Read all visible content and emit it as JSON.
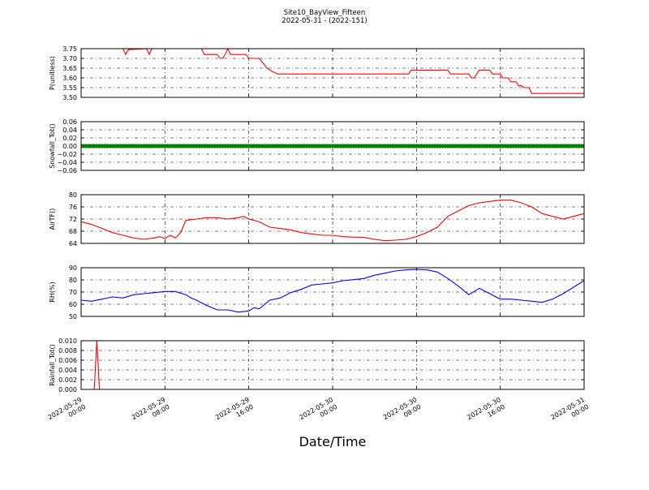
{
  "figure": {
    "title_line1": "Site10_BayView_Fifteen",
    "title_line2": "2022-05-31 - (2022-151)",
    "xlabel": "Date/Time"
  },
  "colors": {
    "red": "#ff0000",
    "green": "#008000",
    "blue": "#0000ff",
    "grid": "#000000"
  },
  "chart_data": [
    {
      "type": "line",
      "ylabel": "P(unitless)",
      "ylim": [
        3.5,
        3.75
      ],
      "yticks": [
        "3.50",
        "3.55",
        "3.60",
        "3.65",
        "3.70",
        "3.75"
      ],
      "x_range": [
        "2022-05-29 00:00",
        "2022-05-31 00:00"
      ],
      "xticks": [
        "2022-05-29 00:00",
        "2022-05-29 08:00",
        "2022-05-29 16:00",
        "2022-05-30 00:00",
        "2022-05-30 08:00",
        "2022-05-30 16:00",
        "2022-05-31 00:00"
      ],
      "grid": true,
      "series": [
        {
          "color": "red",
          "x": [
            "2022-05-29 00:00",
            "2022-05-29 04:00",
            "2022-05-29 04:15",
            "2022-05-29 04:30",
            "2022-05-29 06:15",
            "2022-05-29 06:30",
            "2022-05-29 06:45",
            "2022-05-29 11:30",
            "2022-05-29 11:45",
            "2022-05-29 13:00",
            "2022-05-29 13:15",
            "2022-05-29 13:30",
            "2022-05-29 13:45",
            "2022-05-29 14:00",
            "2022-05-29 14:15",
            "2022-05-29 15:45",
            "2022-05-29 16:00",
            "2022-05-29 17:00",
            "2022-05-29 17:45",
            "2022-05-29 18:00",
            "2022-05-29 18:45",
            "2022-05-29 20:00",
            "2022-05-30 07:15",
            "2022-05-30 07:30",
            "2022-05-30 11:00",
            "2022-05-30 11:15",
            "2022-05-30 13:00",
            "2022-05-30 13:15",
            "2022-05-30 13:30",
            "2022-05-30 14:00",
            "2022-05-30 15:00",
            "2022-05-30 15:15",
            "2022-05-30 16:00",
            "2022-05-30 16:15",
            "2022-05-30 16:45",
            "2022-05-30 17:00",
            "2022-05-30 17:30",
            "2022-05-30 17:45",
            "2022-05-30 18:00",
            "2022-05-30 18:15",
            "2022-05-30 18:45",
            "2022-05-30 19:00",
            "2022-05-30 19:30",
            "2022-05-30 19:45",
            "2022-05-30 23:00",
            "2022-05-31 00:00"
          ],
          "y": [
            3.75,
            3.75,
            3.72,
            3.745,
            3.75,
            3.72,
            3.75,
            3.75,
            3.72,
            3.72,
            3.7,
            3.7,
            3.72,
            3.75,
            3.72,
            3.72,
            3.7,
            3.7,
            3.65,
            3.64,
            3.62,
            3.62,
            3.62,
            3.64,
            3.64,
            3.62,
            3.62,
            3.6,
            3.6,
            3.64,
            3.64,
            3.62,
            3.62,
            3.6,
            3.6,
            3.58,
            3.58,
            3.56,
            3.56,
            3.55,
            3.55,
            3.52,
            3.52,
            3.52,
            3.52,
            3.52
          ]
        }
      ]
    },
    {
      "type": "scatter",
      "ylabel": "Snowfall_Tot()",
      "ylim": [
        -0.06,
        0.06
      ],
      "yticks": [
        "−0.06",
        "−0.04",
        "−0.02",
        "0.00",
        "0.02",
        "0.04",
        "0.06"
      ],
      "x_range": [
        "2022-05-29 00:00",
        "2022-05-31 00:00"
      ],
      "grid": true,
      "series": [
        {
          "color": "green",
          "constant_value": 0.0,
          "interval_minutes": 15
        }
      ]
    },
    {
      "type": "line",
      "ylabel": "AirTF()",
      "ylim": [
        62,
        80
      ],
      "yticks": [
        "64",
        "68",
        "72",
        "76",
        "80"
      ],
      "x_range": [
        "2022-05-29 00:00",
        "2022-05-31 00:00"
      ],
      "grid": true,
      "series": [
        {
          "color": "red",
          "x": [
            "2022-05-29 00:00",
            "2022-05-29 01:00",
            "2022-05-29 02:00",
            "2022-05-29 03:00",
            "2022-05-29 04:00",
            "2022-05-29 05:00",
            "2022-05-29 06:00",
            "2022-05-29 07:00",
            "2022-05-29 07:30",
            "2022-05-29 08:00",
            "2022-05-29 08:30",
            "2022-05-29 09:00",
            "2022-05-29 09:30",
            "2022-05-29 10:00",
            "2022-05-29 11:00",
            "2022-05-29 12:00",
            "2022-05-29 13:00",
            "2022-05-29 14:00",
            "2022-05-29 15:00",
            "2022-05-29 15:30",
            "2022-05-29 16:00",
            "2022-05-29 17:00",
            "2022-05-29 18:00",
            "2022-05-29 19:00",
            "2022-05-29 20:00",
            "2022-05-29 21:00",
            "2022-05-29 22:00",
            "2022-05-29 23:00",
            "2022-05-30 00:00",
            "2022-05-30 01:00",
            "2022-05-30 02:00",
            "2022-05-30 03:00",
            "2022-05-30 04:00",
            "2022-05-30 05:00",
            "2022-05-30 06:00",
            "2022-05-30 07:00",
            "2022-05-30 08:00",
            "2022-05-30 09:00",
            "2022-05-30 10:00",
            "2022-05-30 11:00",
            "2022-05-30 12:00",
            "2022-05-30 13:00",
            "2022-05-30 14:00",
            "2022-05-30 15:00",
            "2022-05-30 16:00",
            "2022-05-30 17:00",
            "2022-05-30 18:00",
            "2022-05-30 19:00",
            "2022-05-30 20:00",
            "2022-05-30 21:00",
            "2022-05-30 22:00",
            "2022-05-30 23:00",
            "2022-05-31 00:00"
          ],
          "y": [
            70,
            69,
            67.5,
            66,
            65,
            64,
            63.5,
            64,
            64.5,
            63.8,
            65,
            64,
            66,
            70.5,
            71,
            71.5,
            71.5,
            71,
            71.5,
            72,
            71,
            70,
            68,
            67.5,
            67,
            66,
            65.5,
            65,
            65,
            64.5,
            64.3,
            64.2,
            63.5,
            63,
            63.2,
            63.5,
            64.5,
            66,
            68,
            72,
            74,
            76,
            77,
            77.5,
            78,
            78,
            77,
            75.5,
            73,
            72,
            71,
            72,
            73
          ]
        }
      ]
    },
    {
      "type": "line",
      "ylabel": "RH(%)",
      "ylim": [
        45,
        90
      ],
      "yticks": [
        "50",
        "60",
        "70",
        "80",
        "90"
      ],
      "x_range": [
        "2022-05-29 00:00",
        "2022-05-31 00:00"
      ],
      "grid": true,
      "series": [
        {
          "color": "blue",
          "x": [
            "2022-05-29 00:00",
            "2022-05-29 01:00",
            "2022-05-29 02:00",
            "2022-05-29 03:00",
            "2022-05-29 04:00",
            "2022-05-29 05:00",
            "2022-05-29 06:00",
            "2022-05-29 07:00",
            "2022-05-29 08:00",
            "2022-05-29 09:00",
            "2022-05-29 10:00",
            "2022-05-29 10:30",
            "2022-05-29 11:00",
            "2022-05-29 12:00",
            "2022-05-29 13:00",
            "2022-05-29 14:00",
            "2022-05-29 15:00",
            "2022-05-29 16:00",
            "2022-05-29 16:30",
            "2022-05-29 17:00",
            "2022-05-29 18:00",
            "2022-05-29 19:00",
            "2022-05-29 20:00",
            "2022-05-29 21:00",
            "2022-05-29 22:00",
            "2022-05-29 23:00",
            "2022-05-30 00:00",
            "2022-05-30 01:00",
            "2022-05-30 02:00",
            "2022-05-30 03:00",
            "2022-05-30 04:00",
            "2022-05-30 05:00",
            "2022-05-30 06:00",
            "2022-05-30 07:00",
            "2022-05-30 08:00",
            "2022-05-30 09:00",
            "2022-05-30 10:00",
            "2022-05-30 10:30",
            "2022-05-30 11:00",
            "2022-05-30 12:00",
            "2022-05-30 13:00",
            "2022-05-30 14:00",
            "2022-05-30 15:00",
            "2022-05-30 16:00",
            "2022-05-30 17:00",
            "2022-05-30 18:00",
            "2022-05-30 19:00",
            "2022-05-30 20:00",
            "2022-05-30 21:00",
            "2022-05-30 22:00",
            "2022-05-30 23:00",
            "2022-05-31 00:00"
          ],
          "y": [
            60,
            59,
            61,
            63,
            62,
            65,
            66,
            67,
            68,
            68,
            65,
            62,
            60,
            55,
            51,
            51,
            49,
            50,
            53,
            52,
            60,
            62,
            67,
            70,
            74,
            75,
            76,
            78,
            79,
            80,
            83,
            85,
            87,
            88,
            88.5,
            88,
            86,
            83,
            80,
            73,
            65,
            71,
            66,
            61,
            61,
            60,
            59,
            58,
            61,
            66,
            72,
            78
          ]
        }
      ]
    },
    {
      "type": "line",
      "ylabel": "Rainfall_Tot()",
      "ylim": [
        0,
        0.01
      ],
      "yticks": [
        "0.000",
        "0.002",
        "0.004",
        "0.006",
        "0.008",
        "0.010"
      ],
      "x_range": [
        "2022-05-29 00:00",
        "2022-05-31 00:00"
      ],
      "grid": true,
      "series": [
        {
          "color": "red",
          "x": [
            "2022-05-29 00:00",
            "2022-05-29 01:15",
            "2022-05-29 01:30",
            "2022-05-29 01:45",
            "2022-05-31 00:00"
          ],
          "y": [
            0,
            0,
            0.01,
            0,
            0
          ]
        }
      ]
    }
  ]
}
